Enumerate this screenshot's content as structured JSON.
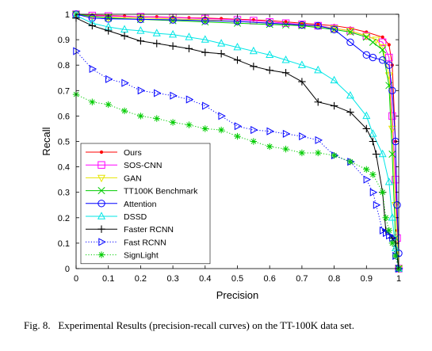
{
  "caption": {
    "label": "Fig. 8.",
    "text": "Experimental Results (precision-recall curves) on the TT-100K data set."
  },
  "chart_data": {
    "type": "line",
    "xlabel": "Precision",
    "ylabel": "Recall",
    "xlim": [
      0,
      1
    ],
    "ylim": [
      0,
      1
    ],
    "x_ticks": [
      "0",
      "0.1",
      "0.2",
      "0.3",
      "0.4",
      "0.5",
      "0.6",
      "0.7",
      "0.8",
      "0.9",
      "1"
    ],
    "y_ticks": [
      "0",
      "0.1",
      "0.2",
      "0.3",
      "0.4",
      "0.5",
      "0.6",
      "0.7",
      "0.8",
      "0.9",
      "1"
    ],
    "grid": false,
    "legend_position": "lower-left",
    "series": [
      {
        "name": "Ours",
        "color": "#ff0000",
        "marker": "dot",
        "dash": "solid",
        "x": [
          0.0,
          0.05,
          0.1,
          0.15,
          0.2,
          0.25,
          0.3,
          0.35,
          0.4,
          0.45,
          0.5,
          0.55,
          0.6,
          0.65,
          0.7,
          0.75,
          0.8,
          0.85,
          0.9,
          0.95,
          0.97,
          0.98,
          0.99,
          0.995,
          1.0
        ],
        "y": [
          1.0,
          0.997,
          0.995,
          0.993,
          0.99,
          0.99,
          0.988,
          0.986,
          0.985,
          0.983,
          0.98,
          0.978,
          0.975,
          0.97,
          0.965,
          0.96,
          0.955,
          0.945,
          0.93,
          0.91,
          0.88,
          0.8,
          0.5,
          0.15,
          0.0
        ]
      },
      {
        "name": "SOS-CNN",
        "color": "#ff00ff",
        "marker": "square",
        "dash": "solid",
        "x": [
          0.0,
          0.05,
          0.1,
          0.2,
          0.3,
          0.4,
          0.5,
          0.55,
          0.6,
          0.65,
          0.7,
          0.75,
          0.8,
          0.85,
          0.9,
          0.95,
          0.97,
          0.98,
          0.99,
          0.995,
          1.0
        ],
        "y": [
          1.0,
          0.995,
          0.993,
          0.99,
          0.987,
          0.983,
          0.978,
          0.975,
          0.97,
          0.965,
          0.96,
          0.955,
          0.945,
          0.935,
          0.915,
          0.89,
          0.83,
          0.6,
          0.35,
          0.12,
          0.0
        ]
      },
      {
        "name": "GAN",
        "color": "#e6e600",
        "marker": "triangle-down",
        "dash": "solid",
        "x": [
          0.0,
          0.05,
          0.1,
          0.2,
          0.3,
          0.4,
          0.5,
          0.6,
          0.7,
          0.8,
          0.85,
          0.9,
          0.93,
          0.95,
          0.97,
          0.98,
          0.99,
          1.0
        ],
        "y": [
          1.0,
          0.99,
          0.988,
          0.985,
          0.982,
          0.978,
          0.972,
          0.965,
          0.958,
          0.945,
          0.935,
          0.915,
          0.9,
          0.87,
          0.76,
          0.55,
          0.25,
          0.0
        ]
      },
      {
        "name": "TT100K Benchmark",
        "color": "#00cc00",
        "marker": "x",
        "dash": "solid",
        "x": [
          0.0,
          0.1,
          0.2,
          0.3,
          0.4,
          0.5,
          0.6,
          0.65,
          0.7,
          0.8,
          0.85,
          0.9,
          0.92,
          0.95,
          0.97,
          0.98,
          0.99,
          1.0
        ],
        "y": [
          1.0,
          0.985,
          0.98,
          0.975,
          0.97,
          0.965,
          0.96,
          0.958,
          0.955,
          0.94,
          0.93,
          0.91,
          0.89,
          0.86,
          0.72,
          0.45,
          0.12,
          0.0
        ]
      },
      {
        "name": "Attention",
        "color": "#0000ff",
        "marker": "circle",
        "dash": "solid",
        "x": [
          0.0,
          0.05,
          0.1,
          0.2,
          0.3,
          0.4,
          0.5,
          0.6,
          0.7,
          0.75,
          0.8,
          0.85,
          0.9,
          0.92,
          0.95,
          0.97,
          0.98,
          0.99,
          0.995,
          1.0
        ],
        "y": [
          1.0,
          0.985,
          0.982,
          0.98,
          0.978,
          0.975,
          0.972,
          0.965,
          0.958,
          0.955,
          0.94,
          0.89,
          0.84,
          0.83,
          0.82,
          0.8,
          0.7,
          0.5,
          0.25,
          0.06
        ]
      },
      {
        "name": "DSSD",
        "color": "#00e6e6",
        "marker": "triangle-up",
        "dash": "solid",
        "x": [
          0.0,
          0.05,
          0.1,
          0.15,
          0.2,
          0.25,
          0.3,
          0.35,
          0.4,
          0.45,
          0.5,
          0.55,
          0.6,
          0.65,
          0.7,
          0.75,
          0.8,
          0.85,
          0.9,
          0.92,
          0.95,
          0.97,
          0.98,
          0.99,
          1.0
        ],
        "y": [
          0.995,
          0.965,
          0.95,
          0.94,
          0.935,
          0.925,
          0.92,
          0.91,
          0.9,
          0.885,
          0.87,
          0.855,
          0.84,
          0.82,
          0.8,
          0.78,
          0.74,
          0.68,
          0.6,
          0.53,
          0.45,
          0.34,
          0.2,
          0.08,
          0.0
        ]
      },
      {
        "name": "Faster RCNN",
        "color": "#000000",
        "marker": "plus",
        "dash": "solid",
        "x": [
          0.0,
          0.05,
          0.1,
          0.15,
          0.2,
          0.25,
          0.3,
          0.35,
          0.4,
          0.45,
          0.5,
          0.55,
          0.6,
          0.65,
          0.7,
          0.75,
          0.8,
          0.85,
          0.9,
          0.92,
          0.93,
          0.95,
          0.96,
          0.98,
          0.99,
          1.0
        ],
        "y": [
          0.985,
          0.955,
          0.935,
          0.915,
          0.895,
          0.885,
          0.875,
          0.865,
          0.85,
          0.845,
          0.82,
          0.795,
          0.78,
          0.77,
          0.735,
          0.655,
          0.64,
          0.615,
          0.55,
          0.5,
          0.45,
          0.3,
          0.15,
          0.12,
          0.1,
          0.0
        ]
      },
      {
        "name": "Fast RCNN",
        "color": "#0000ff",
        "marker": "triangle-right",
        "dash": "dotted",
        "x": [
          0.0,
          0.05,
          0.1,
          0.15,
          0.2,
          0.25,
          0.3,
          0.35,
          0.4,
          0.45,
          0.5,
          0.55,
          0.6,
          0.65,
          0.7,
          0.75,
          0.8,
          0.85,
          0.9,
          0.92,
          0.93,
          0.95,
          0.96,
          0.97,
          0.98,
          0.99,
          1.0
        ],
        "y": [
          0.855,
          0.785,
          0.745,
          0.73,
          0.7,
          0.69,
          0.68,
          0.665,
          0.64,
          0.6,
          0.56,
          0.545,
          0.54,
          0.53,
          0.52,
          0.505,
          0.445,
          0.42,
          0.35,
          0.3,
          0.25,
          0.15,
          0.14,
          0.13,
          0.12,
          0.05,
          0.0
        ]
      },
      {
        "name": "SignLight",
        "color": "#00cc00",
        "marker": "star",
        "dash": "dotted",
        "x": [
          0.0,
          0.05,
          0.1,
          0.15,
          0.2,
          0.25,
          0.3,
          0.35,
          0.4,
          0.45,
          0.5,
          0.55,
          0.6,
          0.65,
          0.7,
          0.75,
          0.8,
          0.85,
          0.9,
          0.92,
          0.95,
          0.96,
          0.97,
          0.98,
          0.99,
          1.0
        ],
        "y": [
          0.685,
          0.655,
          0.645,
          0.62,
          0.6,
          0.59,
          0.575,
          0.565,
          0.55,
          0.545,
          0.52,
          0.5,
          0.48,
          0.47,
          0.455,
          0.455,
          0.445,
          0.42,
          0.39,
          0.37,
          0.3,
          0.2,
          0.15,
          0.1,
          0.05,
          0.0
        ]
      }
    ]
  }
}
